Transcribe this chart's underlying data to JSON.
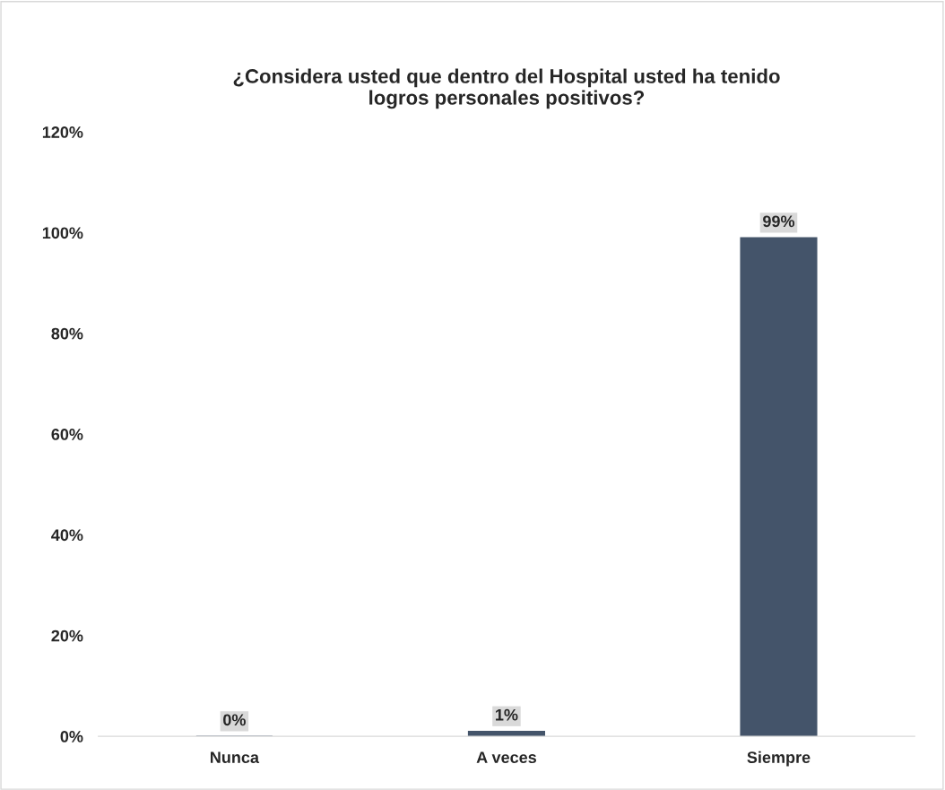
{
  "chart_data": {
    "type": "bar",
    "title": "¿Considera usted que dentro del Hospital usted ha tenido\nlogros personales positivos?",
    "categories": [
      "Nunca",
      "A veces",
      "Siempre"
    ],
    "values": [
      0,
      1,
      99
    ],
    "value_labels": [
      "0%",
      "1%",
      "99%"
    ],
    "color": "#44546a",
    "ylim": [
      0,
      120
    ],
    "yticks": [
      {
        "value": 0,
        "label": "0%"
      },
      {
        "value": 20,
        "label": "20%"
      },
      {
        "value": 40,
        "label": "40%"
      },
      {
        "value": 60,
        "label": "60%"
      },
      {
        "value": 80,
        "label": "80%"
      },
      {
        "value": 100,
        "label": "100%"
      },
      {
        "value": 120,
        "label": "120%"
      }
    ],
    "grid": false,
    "legend": false
  }
}
